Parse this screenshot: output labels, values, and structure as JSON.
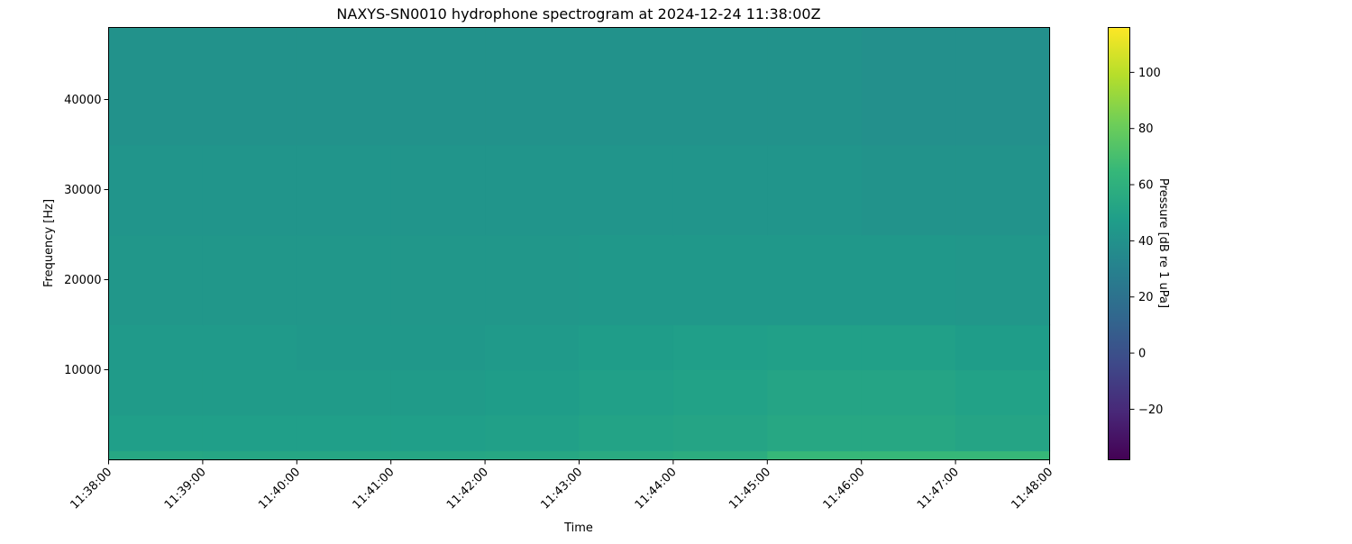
{
  "chart_data": {
    "type": "heatmap",
    "title": "NAXYS-SN0010 hydrophone spectrogram at 2024-12-24 11:38:00Z",
    "xlabel": "Time",
    "ylabel": "Frequency [Hz]",
    "colorbar_label": "Pressure [dB re 1 uPa]",
    "colormap": "viridis",
    "xlim": [
      "11:38:00",
      "11:48:00"
    ],
    "ylim": [
      0,
      48000
    ],
    "clim": [
      -38,
      116
    ],
    "x_ticks": [
      "11:38:00",
      "11:39:00",
      "11:40:00",
      "11:41:00",
      "11:42:00",
      "11:43:00",
      "11:44:00",
      "11:45:00",
      "11:46:00",
      "11:47:00",
      "11:48:00"
    ],
    "y_ticks": [
      10000,
      20000,
      30000,
      40000
    ],
    "colorbar_ticks": [
      -20,
      0,
      20,
      40,
      60,
      80,
      100
    ],
    "time_bins": [
      "11:38",
      "11:39",
      "11:40",
      "11:41",
      "11:42",
      "11:43",
      "11:44",
      "11:45",
      "11:46",
      "11:47"
    ],
    "frequency_bands_hz": [
      [
        0,
        1000
      ],
      [
        1000,
        5000
      ],
      [
        5000,
        10000
      ],
      [
        10000,
        15000
      ],
      [
        15000,
        25000
      ],
      [
        25000,
        35000
      ],
      [
        35000,
        48000
      ]
    ],
    "values_db": [
      [
        54,
        53,
        53,
        53,
        54,
        56,
        58,
        65,
        65,
        65
      ],
      [
        48,
        48,
        48,
        48,
        49,
        51,
        52,
        54,
        54,
        52
      ],
      [
        46,
        46,
        46,
        46,
        47,
        49,
        50,
        52,
        52,
        50
      ],
      [
        45,
        45,
        44,
        44,
        45,
        47,
        48,
        49,
        49,
        47
      ],
      [
        43,
        43,
        43,
        43,
        43,
        44,
        44,
        44,
        44,
        43
      ],
      [
        42,
        42,
        42,
        42,
        42,
        42,
        42,
        42,
        41,
        41
      ],
      [
        40,
        40,
        40,
        40,
        40,
        40,
        40,
        40,
        39,
        39
      ]
    ]
  }
}
